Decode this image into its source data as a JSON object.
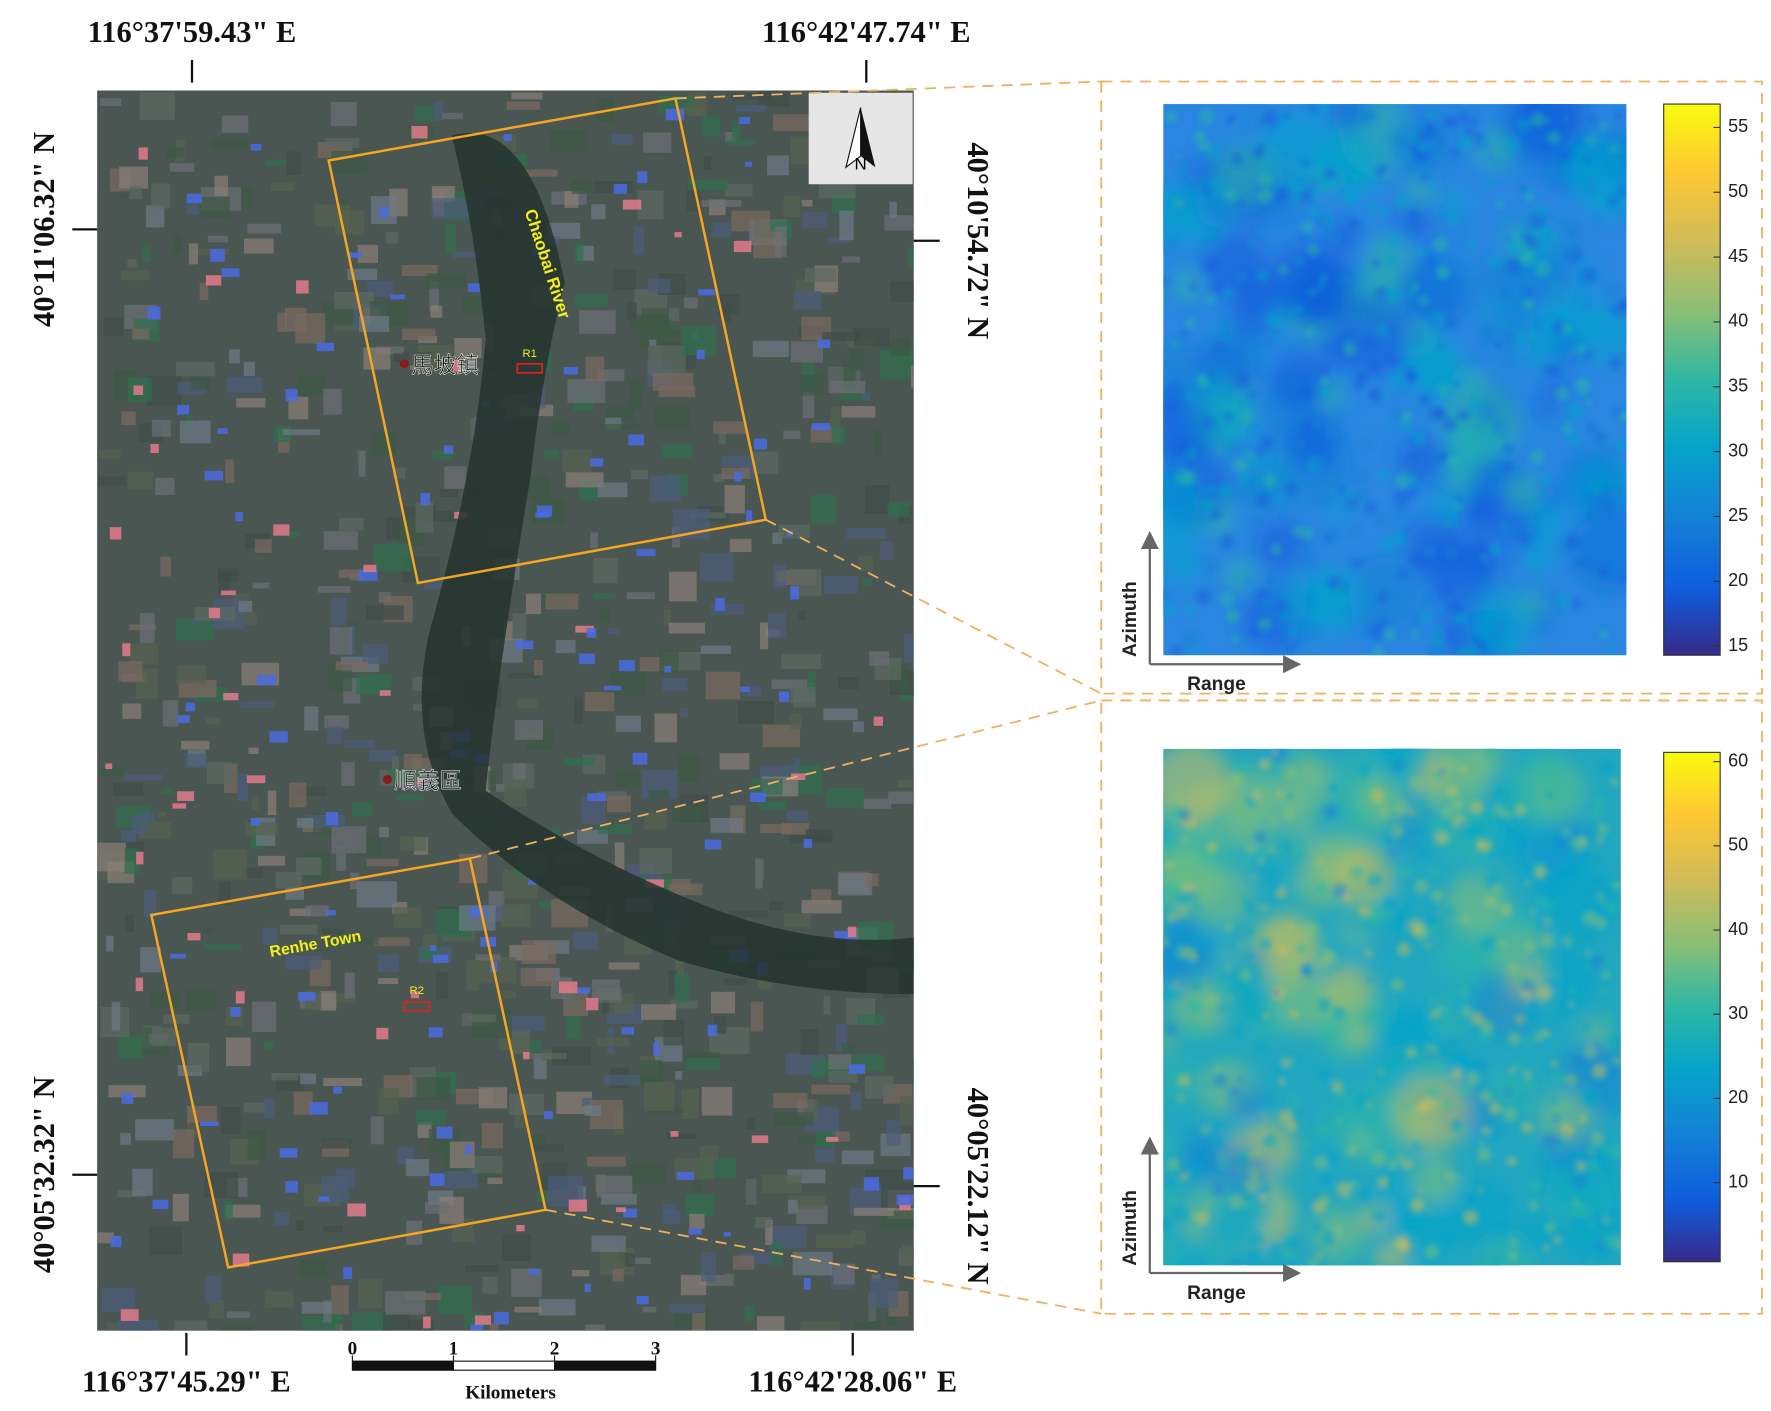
{
  "coordinates": {
    "top": [
      "116°37'59.43\" E",
      "116°42'47.74\" E"
    ],
    "bottom": [
      "116°37'45.29\" E",
      "116°42'28.06\" E"
    ],
    "left": [
      "40°11'06.32\" N",
      "40°05'32.32\" N"
    ],
    "right": [
      "40°10'54.72\" N",
      "40°05'22.12\" N"
    ]
  },
  "labels": {
    "river": "Chaobai River",
    "town": "Renhe Town",
    "r1": "R1",
    "r2": "R2",
    "place_1": "馬坡鎮",
    "place_2": "順義區",
    "north": "N"
  },
  "scale_bar": {
    "ticks": [
      0,
      1,
      2,
      3
    ],
    "unit": "Kilometers"
  },
  "panels": [
    {
      "x_label": "Range",
      "y_label": "Azimuth",
      "colorbar": {
        "lim": [
          14.3,
          56.8
        ],
        "ticks": [
          15,
          20,
          25,
          30,
          35,
          40,
          45,
          50,
          55
        ]
      }
    },
    {
      "x_label": "Range",
      "y_label": "Azimuth",
      "colorbar": {
        "lim": [
          0.6,
          61.1
        ],
        "ticks": [
          10,
          20,
          30,
          40,
          50,
          60
        ]
      }
    }
  ]
}
